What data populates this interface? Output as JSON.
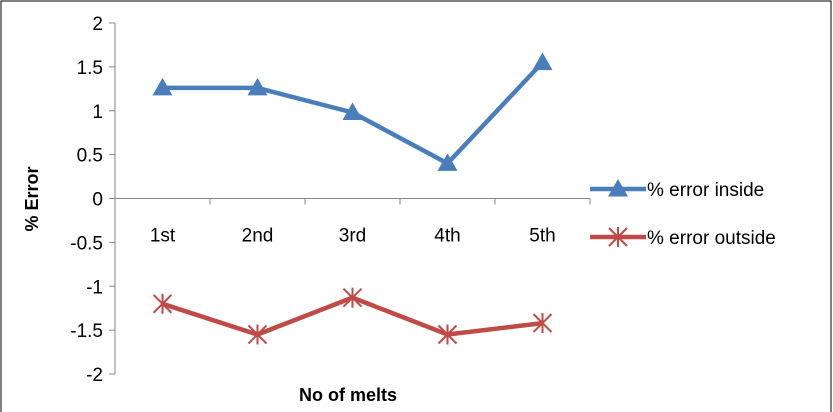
{
  "chart_data": {
    "type": "line",
    "title": "",
    "xlabel": "No of melts",
    "ylabel": "% Error",
    "categories": [
      "1st",
      "2nd",
      "3rd",
      "4th",
      "5th"
    ],
    "ylim": [
      -2,
      2
    ],
    "yticks": [
      2,
      1.5,
      1,
      0.5,
      0,
      -0.5,
      -1,
      -1.5,
      -2
    ],
    "ytick_labels": [
      "2",
      "1.5",
      "1",
      "0.5",
      "0",
      "-0.5",
      "-1",
      "-1.5",
      "-2"
    ],
    "grid": false,
    "legend_position": "right",
    "series": [
      {
        "name": "% error inside",
        "values": [
          1.26,
          1.26,
          0.98,
          0.4,
          1.55
        ],
        "color": "#4a7ebb",
        "marker": "triangle"
      },
      {
        "name": "% error outside",
        "values": [
          -1.2,
          -1.55,
          -1.13,
          -1.55,
          -1.42
        ],
        "color": "#be4b48",
        "marker": "star"
      }
    ]
  }
}
